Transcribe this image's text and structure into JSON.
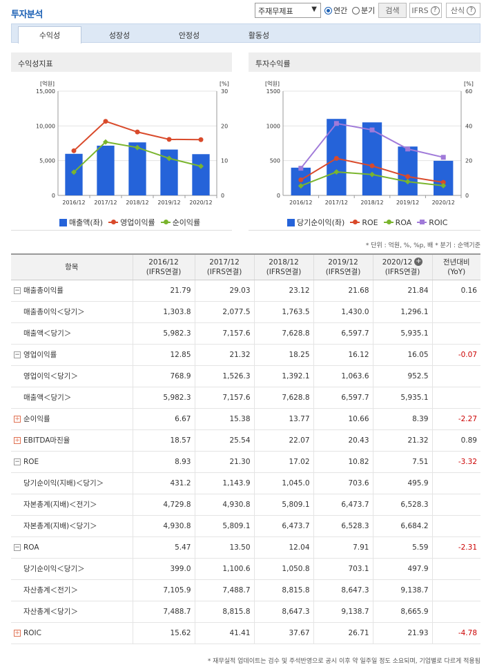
{
  "header": {
    "title": "투자분석",
    "select_value": "주재무제표",
    "radio_annual": "연간",
    "radio_quarter": "분기",
    "search_label": "검색",
    "ifrs_label": "IFRS",
    "formula_label": "산식"
  },
  "tabs": [
    "수익성",
    "성장성",
    "안정성",
    "활동성"
  ],
  "left_chart_title": "수익성지표",
  "right_chart_title": "투자수익률",
  "charts": {
    "left": {
      "left_unit": "[억원]",
      "right_unit": "[%]",
      "left_ticks": [
        "15,000",
        "10,000",
        "5,000",
        "0"
      ],
      "right_ticks": [
        "30",
        "20",
        "10",
        "0"
      ],
      "categories": [
        "2016/12",
        "2017/12",
        "2018/12",
        "2019/12",
        "2020/12"
      ],
      "legend": [
        "매출액(좌)",
        "영업이익률",
        "순이익률"
      ]
    },
    "right": {
      "left_unit": "[억원]",
      "right_unit": "[%]",
      "left_ticks": [
        "1500",
        "1000",
        "500",
        "0"
      ],
      "right_ticks": [
        "60",
        "40",
        "20",
        "0"
      ],
      "categories": [
        "2016/12",
        "2017/12",
        "2018/12",
        "2019/12",
        "2020/12"
      ],
      "legend": [
        "당기순이익(좌)",
        "ROE",
        "ROA",
        "ROIC"
      ]
    }
  },
  "chart_data": [
    {
      "type": "bar",
      "categories": [
        "2016/12",
        "2017/12",
        "2018/12",
        "2019/12",
        "2020/12"
      ],
      "ylim": [
        0,
        15000
      ],
      "y2lim": [
        0,
        30
      ],
      "series": [
        {
          "name": "매출액(좌)",
          "kind": "bar",
          "axis": "left",
          "color": "#2563d9",
          "values": [
            5982.3,
            7157.6,
            7628.8,
            6597.7,
            5935.1
          ]
        },
        {
          "name": "영업이익률",
          "kind": "line",
          "axis": "right",
          "color": "#d94a2b",
          "values": [
            12.85,
            21.32,
            18.25,
            16.12,
            16.05
          ]
        },
        {
          "name": "순이익률",
          "kind": "line",
          "axis": "right",
          "color": "#7ab52e",
          "values": [
            6.67,
            15.38,
            13.77,
            10.66,
            8.39
          ]
        }
      ]
    },
    {
      "type": "bar",
      "categories": [
        "2016/12",
        "2017/12",
        "2018/12",
        "2019/12",
        "2020/12"
      ],
      "ylim": [
        0,
        1500
      ],
      "y2lim": [
        0,
        60
      ],
      "series": [
        {
          "name": "당기순이익(좌)",
          "kind": "bar",
          "axis": "left",
          "color": "#2563d9",
          "values": [
            399.0,
            1100.6,
            1050.8,
            703.1,
            497.9
          ]
        },
        {
          "name": "ROE",
          "kind": "line",
          "axis": "right",
          "color": "#d94a2b",
          "values": [
            8.93,
            21.3,
            17.02,
            10.82,
            7.51
          ]
        },
        {
          "name": "ROA",
          "kind": "line",
          "axis": "right",
          "color": "#7ab52e",
          "values": [
            5.47,
            13.5,
            12.04,
            7.91,
            5.59
          ]
        },
        {
          "name": "ROIC",
          "kind": "line",
          "axis": "right",
          "color": "#a07ad9",
          "values": [
            15.62,
            41.41,
            37.67,
            26.71,
            21.93
          ]
        }
      ]
    }
  ],
  "unit_note": "* 단위 : 억원, %, %p, 배    * 분기 : 순액기준",
  "table": {
    "headers": [
      "항목",
      "2016/12\n(IFRS연결)",
      "2017/12\n(IFRS연결)",
      "2018/12\n(IFRS연결)",
      "2019/12\n(IFRS연결)",
      "2020/12\n(IFRS연결)",
      "전년대비\n(YoY)"
    ],
    "rows": [
      {
        "label": "매출총이익률",
        "type": "minus",
        "vals": [
          "21.79",
          "29.03",
          "23.12",
          "21.68",
          "21.84",
          "0.16"
        ]
      },
      {
        "label": "매출총이익＜당기＞",
        "type": "sub",
        "vals": [
          "1,303.8",
          "2,077.5",
          "1,763.5",
          "1,430.0",
          "1,296.1",
          ""
        ]
      },
      {
        "label": "매출액＜당기＞",
        "type": "sub",
        "vals": [
          "5,982.3",
          "7,157.6",
          "7,628.8",
          "6,597.7",
          "5,935.1",
          ""
        ]
      },
      {
        "label": "영업이익률",
        "type": "minus",
        "vals": [
          "12.85",
          "21.32",
          "18.25",
          "16.12",
          "16.05",
          "-0.07"
        ]
      },
      {
        "label": "영업이익＜당기＞",
        "type": "sub",
        "vals": [
          "768.9",
          "1,526.3",
          "1,392.1",
          "1,063.6",
          "952.5",
          ""
        ]
      },
      {
        "label": "매출액＜당기＞",
        "type": "sub",
        "vals": [
          "5,982.3",
          "7,157.6",
          "7,628.8",
          "6,597.7",
          "5,935.1",
          ""
        ]
      },
      {
        "label": "순이익률",
        "type": "plus",
        "vals": [
          "6.67",
          "15.38",
          "13.77",
          "10.66",
          "8.39",
          "-2.27"
        ]
      },
      {
        "label": "EBITDA마진율",
        "type": "plus",
        "vals": [
          "18.57",
          "25.54",
          "22.07",
          "20.43",
          "21.32",
          "0.89"
        ]
      },
      {
        "label": "ROE",
        "type": "minus",
        "vals": [
          "8.93",
          "21.30",
          "17.02",
          "10.82",
          "7.51",
          "-3.32"
        ]
      },
      {
        "label": "당기순이익(지배)＜당기＞",
        "type": "sub",
        "vals": [
          "431.2",
          "1,143.9",
          "1,045.0",
          "703.6",
          "495.9",
          ""
        ]
      },
      {
        "label": "자본총계(지배)＜전기＞",
        "type": "sub",
        "vals": [
          "4,729.8",
          "4,930.8",
          "5,809.1",
          "6,473.7",
          "6,528.3",
          ""
        ]
      },
      {
        "label": "자본총계(지배)＜당기＞",
        "type": "sub",
        "vals": [
          "4,930.8",
          "5,809.1",
          "6,473.7",
          "6,528.3",
          "6,684.2",
          ""
        ]
      },
      {
        "label": "ROA",
        "type": "minus",
        "vals": [
          "5.47",
          "13.50",
          "12.04",
          "7.91",
          "5.59",
          "-2.31"
        ]
      },
      {
        "label": "당기순이익＜당기＞",
        "type": "sub",
        "vals": [
          "399.0",
          "1,100.6",
          "1,050.8",
          "703.1",
          "497.9",
          ""
        ]
      },
      {
        "label": "자산총계＜전기＞",
        "type": "sub",
        "vals": [
          "7,105.9",
          "7,488.7",
          "8,815.8",
          "8,647.3",
          "9,138.7",
          ""
        ]
      },
      {
        "label": "자산총계＜당기＞",
        "type": "sub",
        "vals": [
          "7,488.7",
          "8,815.8",
          "8,647.3",
          "9,138.7",
          "8,665.9",
          ""
        ]
      },
      {
        "label": "ROIC",
        "type": "plus",
        "vals": [
          "15.62",
          "41.41",
          "37.67",
          "26.71",
          "21.93",
          "-4.78"
        ]
      }
    ]
  },
  "footer_note": "* 재무실적 업데이트는 검수 및 주석반영으로 공시 이후 약 일주일 정도 소요되며, 기업별로 다르게 적용됨"
}
